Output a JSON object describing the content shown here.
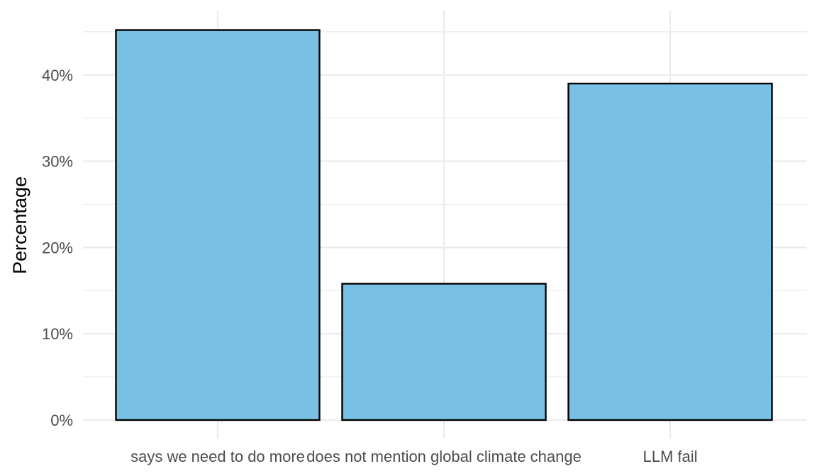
{
  "chart_data": {
    "type": "bar",
    "categories": [
      "says we need to do more",
      "does not mention global climate change",
      "LLM fail"
    ],
    "values": [
      45.2,
      15.8,
      39.0
    ],
    "title": "",
    "xlabel": "",
    "ylabel": "Percentage",
    "ylim": [
      0,
      47.5
    ],
    "yticks": [
      0,
      10,
      20,
      30,
      40
    ],
    "ytick_labels": [
      "0%",
      "10%",
      "20%",
      "30%",
      "40%"
    ],
    "grid": true,
    "legend": "none",
    "bar_fill": "#78c1e5",
    "bar_stroke": "#000000",
    "grid_color": "#ebebeb"
  }
}
